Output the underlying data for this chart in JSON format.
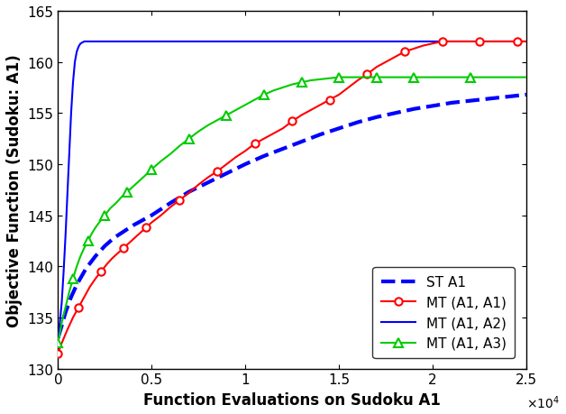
{
  "xlabel": "Function Evaluations on Sudoku A1",
  "ylabel": "Objective Function (Sudoku: A1)",
  "xlim": [
    0,
    25000
  ],
  "ylim": [
    130,
    165
  ],
  "xticks": [
    0,
    5000,
    10000,
    15000,
    20000,
    25000
  ],
  "xtick_labels": [
    "0",
    "0.5",
    "1",
    "1.5",
    "2",
    "2.5"
  ],
  "yticks": [
    130,
    135,
    140,
    145,
    150,
    155,
    160,
    165
  ],
  "legend_labels": [
    "ST A1",
    "MT (A1, A1)",
    "MT (A1, A2)",
    "MT (A1, A3)"
  ],
  "ST_A1": {
    "x": [
      0,
      200,
      400,
      700,
      1000,
      1500,
      2000,
      2500,
      3000,
      4000,
      5000,
      6000,
      7000,
      8000,
      9000,
      10000,
      11000,
      12000,
      13000,
      14000,
      15000,
      16000,
      17000,
      18000,
      19000,
      20000,
      21000,
      22000,
      23000,
      24000,
      25000
    ],
    "y": [
      133.0,
      134.2,
      135.5,
      137.0,
      138.2,
      139.8,
      141.0,
      142.0,
      142.8,
      144.0,
      145.0,
      146.2,
      147.3,
      148.2,
      149.1,
      150.0,
      150.8,
      151.5,
      152.2,
      152.9,
      153.5,
      154.1,
      154.6,
      155.0,
      155.4,
      155.7,
      156.0,
      156.2,
      156.4,
      156.6,
      156.8
    ],
    "color": "#0000FF",
    "linestyle": "--",
    "linewidth": 3.0
  },
  "MT_A1_A1": {
    "x": [
      0,
      200,
      500,
      800,
      1100,
      1400,
      1700,
      2000,
      2300,
      2600,
      2900,
      3200,
      3500,
      3800,
      4100,
      4400,
      4700,
      5000,
      5500,
      6000,
      6500,
      7000,
      7500,
      8000,
      8500,
      9000,
      9500,
      10000,
      10500,
      11000,
      11500,
      12000,
      12500,
      13000,
      13500,
      14000,
      14500,
      15000,
      15500,
      16000,
      16500,
      17000,
      17500,
      18000,
      18500,
      19000,
      19500,
      20000,
      20500,
      21000,
      21500,
      22000,
      22500,
      23000,
      23500,
      24000,
      24500,
      25000
    ],
    "y": [
      131.5,
      132.5,
      133.8,
      135.0,
      136.0,
      137.0,
      138.0,
      138.8,
      139.5,
      140.2,
      140.8,
      141.3,
      141.8,
      142.3,
      142.8,
      143.3,
      143.8,
      144.3,
      145.0,
      145.8,
      146.5,
      147.2,
      148.0,
      148.7,
      149.3,
      150.0,
      150.7,
      151.3,
      152.0,
      152.5,
      153.0,
      153.5,
      154.2,
      154.8,
      155.3,
      155.8,
      156.3,
      156.8,
      157.5,
      158.2,
      158.8,
      159.5,
      160.0,
      160.5,
      161.0,
      161.3,
      161.6,
      161.8,
      162.0,
      162.0,
      162.0,
      162.0,
      162.0,
      162.0,
      162.0,
      162.0,
      162.0,
      162.0
    ],
    "color": "#FF0000",
    "linestyle": "-",
    "linewidth": 1.5,
    "marker": "o",
    "markersize": 6,
    "markevery": 4
  },
  "MT_A1_A2": {
    "x": [
      0,
      100,
      200,
      300,
      400,
      500,
      600,
      700,
      800,
      900,
      1000,
      1100,
      1200,
      1400,
      1600,
      1800,
      2000,
      2500,
      3000,
      4000,
      5000,
      10000,
      25000
    ],
    "y": [
      133.0,
      134.5,
      136.5,
      139.5,
      143.0,
      147.0,
      151.0,
      155.0,
      158.0,
      160.0,
      161.0,
      161.5,
      161.8,
      162.0,
      162.0,
      162.0,
      162.0,
      162.0,
      162.0,
      162.0,
      162.0,
      162.0,
      162.0
    ],
    "color": "#0000FF",
    "linestyle": "-",
    "linewidth": 1.5
  },
  "MT_A1_A3": {
    "x": [
      0,
      200,
      400,
      600,
      800,
      1000,
      1200,
      1400,
      1600,
      1800,
      2000,
      2200,
      2500,
      2800,
      3100,
      3400,
      3700,
      4000,
      4300,
      4600,
      5000,
      5500,
      6000,
      6500,
      7000,
      7500,
      8000,
      8500,
      9000,
      9500,
      10000,
      10500,
      11000,
      11500,
      12000,
      12500,
      13000,
      13500,
      14000,
      14500,
      15000,
      15500,
      16000,
      16500,
      17000,
      17500,
      18000,
      18500,
      19000,
      19500,
      20000,
      21000,
      22000,
      23000,
      24000,
      25000
    ],
    "y": [
      132.5,
      134.5,
      136.0,
      137.5,
      138.8,
      140.0,
      141.0,
      141.8,
      142.5,
      143.2,
      143.8,
      144.3,
      145.0,
      145.7,
      146.2,
      146.8,
      147.3,
      147.8,
      148.3,
      148.8,
      149.5,
      150.3,
      151.0,
      151.8,
      152.5,
      153.2,
      153.8,
      154.3,
      154.8,
      155.3,
      155.8,
      156.3,
      156.8,
      157.2,
      157.5,
      157.8,
      158.0,
      158.2,
      158.3,
      158.4,
      158.5,
      158.5,
      158.5,
      158.5,
      158.5,
      158.5,
      158.5,
      158.5,
      158.5,
      158.5,
      158.5,
      158.5,
      158.5,
      158.5,
      158.5,
      158.5
    ],
    "color": "#00CC00",
    "linestyle": "-",
    "linewidth": 1.5,
    "marker": "^",
    "markersize": 7,
    "markevery": 4
  },
  "fontsize_axis": 12,
  "fontsize_tick": 11
}
